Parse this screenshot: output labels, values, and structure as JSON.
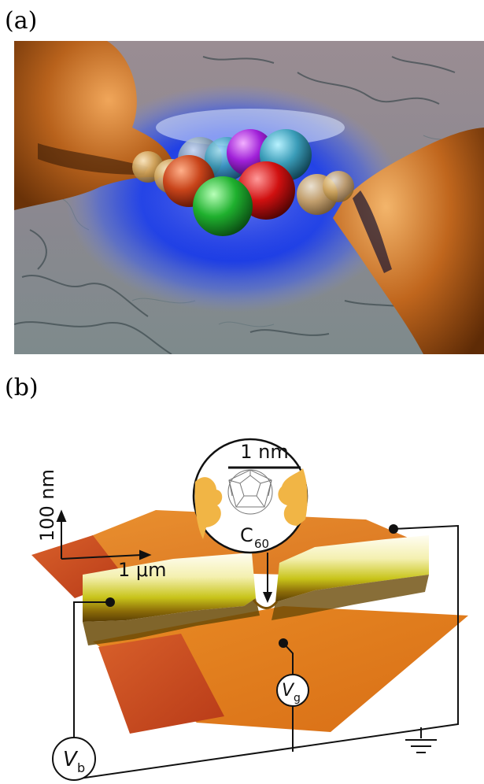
{
  "panel_a": {
    "label": "(a)"
  },
  "panel_b": {
    "label": "(b)",
    "scale_vertical": "100 nm",
    "scale_horizontal": "1 μm",
    "inset_scale": "1 nm",
    "molecule_base": "C",
    "molecule_sub": "60",
    "bias_symbol": "V",
    "bias_sub": "b",
    "gate_symbol": "V",
    "gate_sub": "g"
  }
}
